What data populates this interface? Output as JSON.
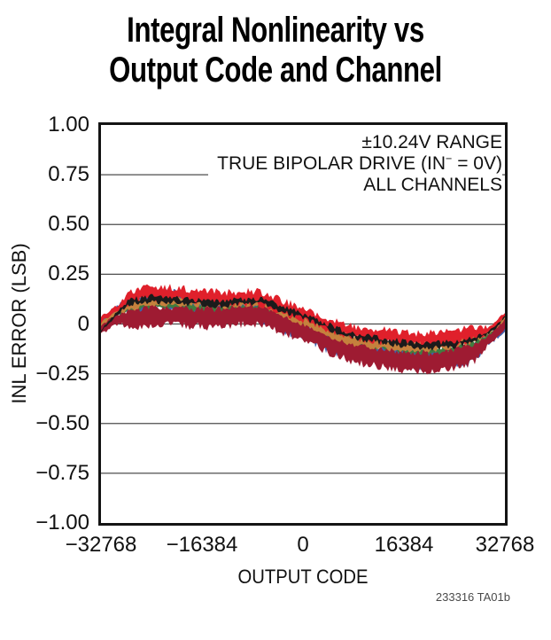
{
  "title": {
    "line1": "Integral Nonlinearity vs",
    "line2": "Output Code and Channel"
  },
  "annotation": {
    "line1": "±10.24V RANGE",
    "line2_pre": "TRUE BIPOLAR DRIVE (IN",
    "line2_sup": "−",
    "line2_post": " = 0V)",
    "line3": "ALL CHANNELS"
  },
  "footnote": "233316 TA01b",
  "chart_data": {
    "type": "line",
    "title": "Integral Nonlinearity vs Output Code and Channel",
    "xlabel": "OUTPUT CODE",
    "ylabel": "INL ERROR (LSB)",
    "xlim": [
      -32768,
      32768
    ],
    "ylim": [
      -1.0,
      1.0
    ],
    "grid": "horizontal-only",
    "legend": "none",
    "x_tick_labels": [
      "−32768",
      "−16384",
      "0",
      "16384",
      "32768"
    ],
    "x_tick_values": [
      -32768,
      -16384,
      0,
      16384,
      32768
    ],
    "y_tick_labels": [
      "1.00",
      "0.75",
      "0.50",
      "0.25",
      "0",
      "−0.25",
      "−0.50",
      "−0.75",
      "−1.00"
    ],
    "y_tick_values": [
      1.0,
      0.75,
      0.5,
      0.25,
      0,
      -0.25,
      -0.5,
      -0.75,
      -1.0
    ],
    "y_gridlines": [
      0.75,
      0.5,
      0.25,
      0,
      -0.25,
      -0.5,
      -0.75
    ],
    "mean_curve": {
      "codes": [
        -32768,
        -30500,
        -28500,
        -26500,
        -24500,
        -22500,
        -20500,
        -18500,
        -16384,
        -14500,
        -12500,
        -10500,
        -8500,
        -6500,
        -4500,
        -2500,
        -500,
        1500,
        3500,
        5500,
        7500,
        9500,
        11500,
        13500,
        16384,
        18500,
        20500,
        22500,
        24500,
        26500,
        28500,
        30500,
        31800,
        32768
      ],
      "inl_lsb": [
        0.0,
        0.045,
        0.075,
        0.09,
        0.1,
        0.1,
        0.095,
        0.09,
        0.088,
        0.082,
        0.082,
        0.088,
        0.092,
        0.085,
        0.06,
        0.035,
        0.012,
        -0.012,
        -0.042,
        -0.068,
        -0.088,
        -0.1,
        -0.108,
        -0.118,
        -0.128,
        -0.132,
        -0.132,
        -0.128,
        -0.12,
        -0.105,
        -0.085,
        -0.045,
        -0.01,
        0.025
      ]
    },
    "band_peak_lsb": 0.19,
    "band_min_lsb": -0.22,
    "series": [
      {
        "name": "channel-blue",
        "color": "#3D61AD",
        "offset": -0.028,
        "halfwidth": 0.042,
        "noise": 0.026,
        "skew_left": 0.05,
        "skew_right": -0.032
      },
      {
        "name": "channel-green",
        "color": "#3F7D40",
        "offset": -0.004,
        "halfwidth": 0.016,
        "noise": 0.012
      },
      {
        "name": "channel-maroon",
        "color": "#9E1B32",
        "offset": -0.05,
        "halfwidth": 0.046,
        "noise": 0.02
      },
      {
        "name": "channel-orange",
        "color": "#C5813D",
        "offset": 0.016,
        "halfwidth": 0.02,
        "noise": 0.012
      },
      {
        "name": "channel-red",
        "color": "#E0202B",
        "offset": 0.05,
        "halfwidth": 0.03,
        "noise": 0.02
      },
      {
        "name": "channel-black",
        "color": "#1B1B1B",
        "offset": 0.028,
        "halfwidth": 0.012,
        "noise": 0.014,
        "left_dip": true
      }
    ],
    "colors": {
      "gridline": "#4D4D4D",
      "frame": "#141414",
      "background": "#FFFFFF",
      "text": "#111111",
      "footnote_text": "#4A4A4A"
    }
  }
}
